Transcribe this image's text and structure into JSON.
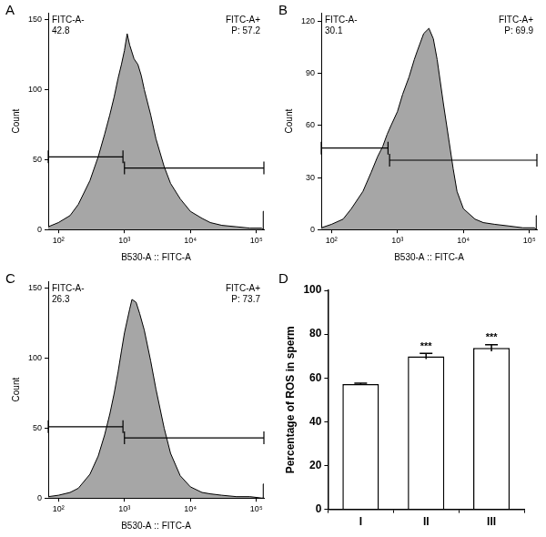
{
  "chart_data": [
    {
      "type": "area",
      "panel": "A",
      "xlabel": "B530-A :: FITC-A",
      "ylabel": "Count",
      "x": [
        70,
        100,
        150,
        200,
        300,
        400,
        500,
        600,
        700,
        800,
        900,
        1000,
        1100,
        1200,
        1400,
        1600,
        1800,
        2000,
        2500,
        3000,
        4000,
        5000,
        7000,
        10000,
        15000,
        20000,
        30000,
        50000,
        80000,
        120000,
        126000,
        127000,
        130000
      ],
      "values": [
        2,
        5,
        10,
        18,
        35,
        52,
        68,
        82,
        95,
        108,
        118,
        128,
        140,
        132,
        122,
        118,
        110,
        100,
        82,
        65,
        45,
        33,
        22,
        13,
        8,
        5,
        3,
        2,
        1,
        1,
        0,
        13,
        13
      ],
      "color": "#a6a6a6",
      "log": "x",
      "grid": false,
      "xlim": [
        70,
        130000
      ],
      "xticks": [
        {
          "value": 100,
          "label": "10²"
        },
        {
          "value": 1000,
          "label": "10³"
        },
        {
          "value": 10000,
          "label": "10⁴"
        },
        {
          "value": 100000,
          "label": "10⁵"
        }
      ],
      "ylim": [
        0,
        155
      ],
      "yticks": [
        0,
        50,
        100,
        150
      ],
      "gates": [
        {
          "name": "FITC-A-",
          "value": 42.8,
          "range": [
            70,
            950
          ],
          "level": 52
        },
        {
          "name": "FITC-A+",
          "value": 57.2,
          "label": "P: 57.2",
          "range": [
            1000,
            130000
          ],
          "level": 44
        }
      ]
    },
    {
      "type": "area",
      "panel": "B",
      "xlabel": "B530-A :: FITC-A",
      "ylabel": "Count",
      "x": [
        70,
        100,
        150,
        200,
        300,
        400,
        500,
        600,
        700,
        800,
        1000,
        1200,
        1500,
        1800,
        2000,
        2500,
        3000,
        3500,
        4000,
        5000,
        6000,
        7000,
        8000,
        10000,
        15000,
        20000,
        30000,
        50000,
        80000,
        120000,
        126000,
        127000,
        130000
      ],
      "values": [
        1,
        3,
        6,
        12,
        22,
        33,
        42,
        48,
        55,
        60,
        68,
        78,
        88,
        98,
        103,
        113,
        116,
        110,
        98,
        72,
        52,
        35,
        22,
        12,
        6,
        4,
        3,
        2,
        1,
        1,
        0,
        8,
        8
      ],
      "color": "#a6a6a6",
      "log": "x",
      "grid": false,
      "xlim": [
        70,
        130000
      ],
      "xticks": [
        {
          "value": 100,
          "label": "10²"
        },
        {
          "value": 1000,
          "label": "10³"
        },
        {
          "value": 10000,
          "label": "10⁴"
        },
        {
          "value": 100000,
          "label": "10⁵"
        }
      ],
      "ylim": [
        0,
        125
      ],
      "yticks": [
        0,
        30,
        60,
        90,
        120
      ],
      "gates": [
        {
          "name": "FITC-A-",
          "value": 30.1,
          "range": [
            70,
            720
          ],
          "level": 47
        },
        {
          "name": "FITC-A+",
          "value": 69.9,
          "label": "P: 69.9",
          "range": [
            760,
            130000
          ],
          "level": 40
        }
      ]
    },
    {
      "type": "area",
      "panel": "C",
      "xlabel": "B530-A :: FITC-A",
      "ylabel": "Count",
      "x": [
        70,
        100,
        150,
        200,
        300,
        400,
        500,
        600,
        700,
        800,
        900,
        1000,
        1200,
        1300,
        1500,
        1700,
        2000,
        2500,
        3000,
        4000,
        5000,
        7000,
        10000,
        15000,
        20000,
        30000,
        50000,
        80000,
        120000,
        126000,
        127000,
        130000
      ],
      "values": [
        1,
        2,
        4,
        7,
        17,
        30,
        45,
        60,
        75,
        90,
        105,
        118,
        135,
        142,
        140,
        132,
        120,
        98,
        78,
        50,
        32,
        16,
        8,
        4,
        3,
        2,
        1,
        1,
        0,
        0,
        10,
        10
      ],
      "color": "#a6a6a6",
      "log": "x",
      "grid": false,
      "xlim": [
        70,
        130000
      ],
      "xticks": [
        {
          "value": 100,
          "label": "10²"
        },
        {
          "value": 1000,
          "label": "10³"
        },
        {
          "value": 10000,
          "label": "10⁴"
        },
        {
          "value": 100000,
          "label": "10⁵"
        }
      ],
      "ylim": [
        0,
        155
      ],
      "yticks": [
        0,
        50,
        100,
        150
      ],
      "gates": [
        {
          "name": "FITC-A-",
          "value": 26.3,
          "range": [
            70,
            950
          ],
          "level": 51
        },
        {
          "name": "FITC-A+",
          "value": 73.7,
          "label": "P: 73.7",
          "range": [
            1000,
            130000
          ],
          "level": 43
        }
      ]
    },
    {
      "type": "bar",
      "panel": "D",
      "ylabel": "Percentage of ROS in sperm",
      "categories": [
        "I",
        "II",
        "III"
      ],
      "values": [
        57.2,
        69.9,
        73.7
      ],
      "errors": [
        0.4,
        1.3,
        1.5
      ],
      "significance": [
        null,
        "***",
        "***"
      ],
      "color": "#ffffff",
      "grid": false,
      "ylim": [
        0,
        100
      ],
      "yticks": [
        0,
        20,
        40,
        60,
        80,
        100
      ]
    }
  ]
}
